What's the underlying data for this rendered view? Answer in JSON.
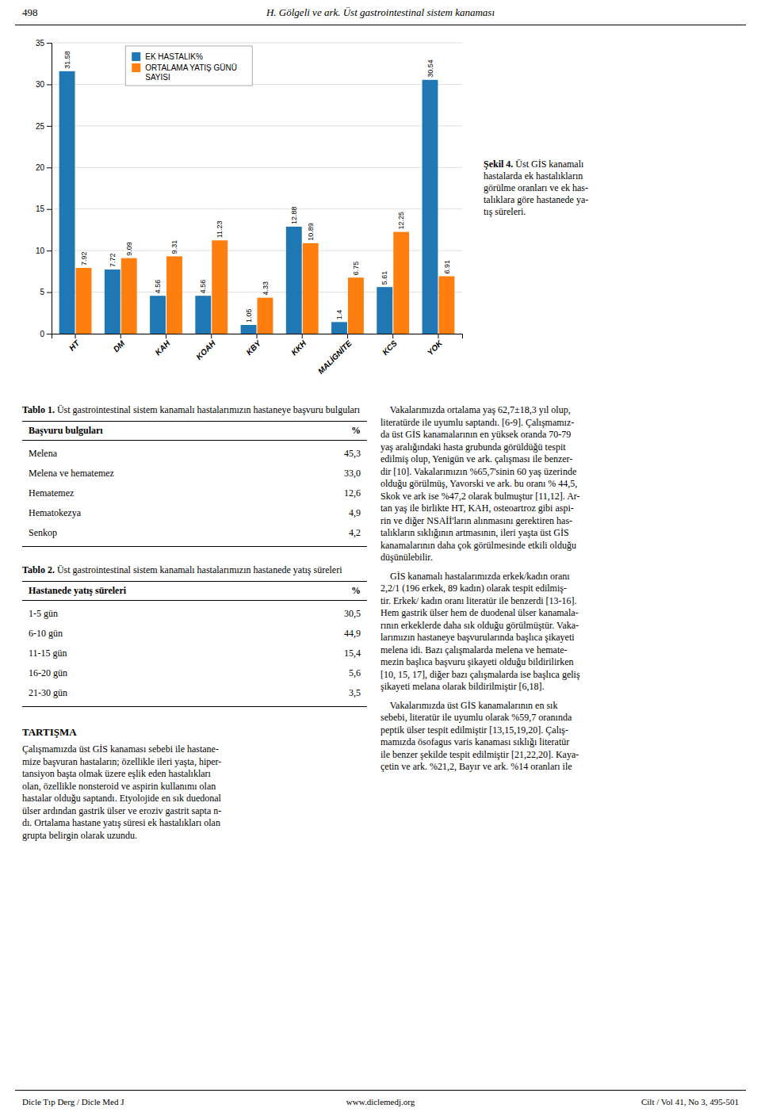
{
  "page": {
    "header_left": "498",
    "header_center": "H. Gölgeli ve ark. Üst gastrointestinal sistem kanaması",
    "caption_bold": "Şekil 4.",
    "caption_rest": " Üst GİS kanamalı\nhastalarda ek hastalıkların\ngörülme oranları ve ek has-\ntalıklara göre hastanede ya-\ntış süreleri.",
    "table1_title_bold": "Tablo 1.",
    "table1_title_rest": " Üst gastrointestinal sistem kanamalı hastalarımızın hastaneye başvuru bulguları",
    "table1_col1_header": "Başvuru bulguları",
    "table1_col2_header": "%",
    "table1_rows": [
      [
        "Melena",
        "45,3"
      ],
      [
        "Melena ve hematemez",
        "33,0"
      ],
      [
        "Hematemez",
        "12,6"
      ],
      [
        "Hematokezya",
        "4,9"
      ],
      [
        "Senkop",
        "4,2"
      ]
    ],
    "table2_title_bold": "Tablo 2.",
    "table2_title_rest": " Üst gastrointestinal sistem kanamalı hastalarımızın hastanede yatış süreleri",
    "table2_col1_header": "Hastanede yatış süreleri",
    "table2_col2_header": "%",
    "table2_rows": [
      [
        "1-5 gün",
        "30,5"
      ],
      [
        "6-10 gün",
        "44,9"
      ],
      [
        "11-15 gün",
        "15,4"
      ],
      [
        "16-20 gün",
        "5,6"
      ],
      [
        "21-30 gün",
        "3,5"
      ]
    ],
    "tartisma_title": "TARTIŞMA",
    "tartisma_text_lines": [
      "Çalışmamızda üst GİS kanaması sebebi ile hastane-",
      "mize başvuran hastaların; özellikle ileri yaşta, hiper-",
      "tansiyon başta olmak üzere eşlik eden hastalıkları",
      "olan, özellikle nonsteroid ve aspirin kullanımı olan",
      "hastalar olduğu saptandı. Etyolojide en sık duedonal",
      "ülser ardından gastrik ülser ve eroziv gastrit sapta n-",
      "dı. Ortalama hastane yatış süresi ek hastalıkları olan",
      "grupta belirgin olarak uzundu."
    ],
    "right_paragraphs": [
      [
        "    Vakalarımızda ortalama yaş 62,7±18,3 yıl olup,",
        "literatürde ile uyumlu saptandı. [6-9]. Çalışmamız-",
        "da üst GİS kanamalarının en yüksek oranda 70-79",
        "yaş aralığındaki hasta grubunda görüldüğü tespit",
        "edilmiş olup, Yenigün ve ark. çalışması ile benzer-",
        "dir [10]. Vakalarımızın %65,7'sinin 60 yaş üzerinde",
        "olduğu görülmüş, Yavorski ve ark. bu oranı % 44,5,",
        "Skok ve ark ise %47,2 olarak bulmuştur [11,12]. Ar-",
        "tan yaş ile birlikte HT, KAH, osteoartroz gibi aspi-",
        "rin ve diğer NSAİİ'ların alınmasını gerektiren has-",
        "talıkların sıklığının artmasının, ileri yaşta üst GİS",
        "kanamalarının daha çok görülmesinde etkili olduğu",
        "düşünülebilir."
      ],
      [
        "    GİS kanamalı hastalarımızda erkek/kadın oranı",
        "2,2/1 (196 erkek, 89 kadın) olarak tespit edilmiş-",
        "tir. Erkek/ kadın oranı literatür ile benzerdi [13-16].",
        "Hem gastrik ülser hem de duodenal ülser kanamala-",
        "rının erkeklerde daha sık olduğu görülmüştür. Vaka-",
        "larımızın hastaneye başvurularında başlıca şikayeti",
        "melena idi. Bazı çalışmalarda melena ve hemate-",
        "mezin başlıca başvuru şikayeti olduğu bildirilirken",
        "[10, 15, 17], diğer bazı çalışmalarda ise başlıca geliş",
        "şikayeti melana olarak bildirilmiştir [6,18]."
      ],
      [
        "    Vakalarımızda üst GİS kanamalarının en sık",
        "sebebi, literatür ile uyumlu olarak %59,7 oranında",
        "peptik ülser tespit edilmiştir [13,15,19,20]. Çalış-",
        "mamızda ösofagus varis kanaması sıklığı literatür",
        "ile benzer şekilde tespit edilmiştir [21,22,20]. Kaya-",
        "çetin ve ark. %21,2, Bayır ve ark. %14 oranları ile"
      ]
    ],
    "footer_left": "Dicle Tıp Derg / Dicle Med J",
    "footer_center": "www.diclemedj.org",
    "footer_right": "Cilt / Vol 41, No 3, 495-501"
  },
  "chart_data": {
    "type": "bar",
    "categories": [
      "HT",
      "DM",
      "KAH",
      "KOAH",
      "KBY",
      "KKH",
      "MALİGNİTE",
      "KCS",
      "YOK"
    ],
    "series": [
      {
        "name": "EK HASTALIK%",
        "values": [
          31.58,
          7.72,
          4.56,
          4.56,
          1.05,
          12.88,
          1.4,
          5.61,
          30.54
        ]
      },
      {
        "name": "ORTALAMA YATIŞ GÜNÜ\nSAYISI",
        "values": [
          7.92,
          9.09,
          9.31,
          11.23,
          4.33,
          10.89,
          6.75,
          12.25,
          6.91
        ]
      }
    ],
    "ylim": [
      0,
      35
    ],
    "yticks": [
      0,
      5,
      10,
      15,
      20,
      25,
      30,
      35
    ],
    "grid": true,
    "data_labels": true,
    "legend": "upper left"
  }
}
